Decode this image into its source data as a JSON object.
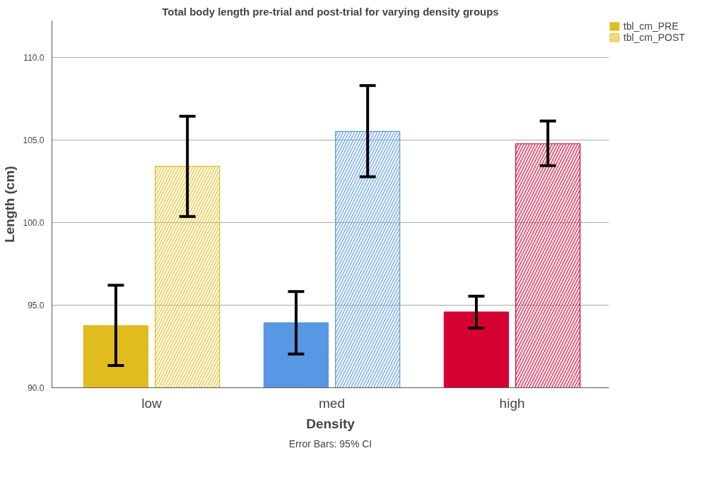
{
  "chart_data": {
    "type": "bar",
    "title": "Total body length pre-trial and post-trial for varying density groups",
    "xlabel": "Density",
    "ylabel": "Length (cm)",
    "categories": [
      "low",
      "med",
      "high"
    ],
    "series": [
      {
        "name": "tbl_cm_PRE",
        "colors": [
          "#e1bc1e",
          "#5897e3",
          "#d50032"
        ],
        "values": [
          93.76,
          93.93,
          94.59
        ],
        "errors": [
          [
            91.34,
            96.2
          ],
          [
            92.04,
            95.82
          ],
          [
            93.61,
            95.54
          ]
        ]
      },
      {
        "name": "tbl_cm_POST",
        "colors": [
          "#e1bc1e",
          "#5897e3",
          "#d50032"
        ],
        "values": [
          103.4,
          105.5,
          104.76
        ],
        "errors": [
          [
            100.36,
            106.43
          ],
          [
            102.76,
            108.28
          ],
          [
            103.44,
            106.14
          ]
        ]
      }
    ],
    "ylim": [
      90,
      112.2
    ],
    "yticks": [
      {
        "value": 90,
        "label": "90.0"
      },
      {
        "value": 95,
        "label": "95.0"
      },
      {
        "value": 100,
        "label": "100.0"
      },
      {
        "value": 105,
        "label": "105.0"
      },
      {
        "value": 110,
        "label": "110.0"
      }
    ],
    "grid": "y",
    "legend": "top right",
    "annotations": [
      "Error Bars: 95% CI"
    ]
  }
}
